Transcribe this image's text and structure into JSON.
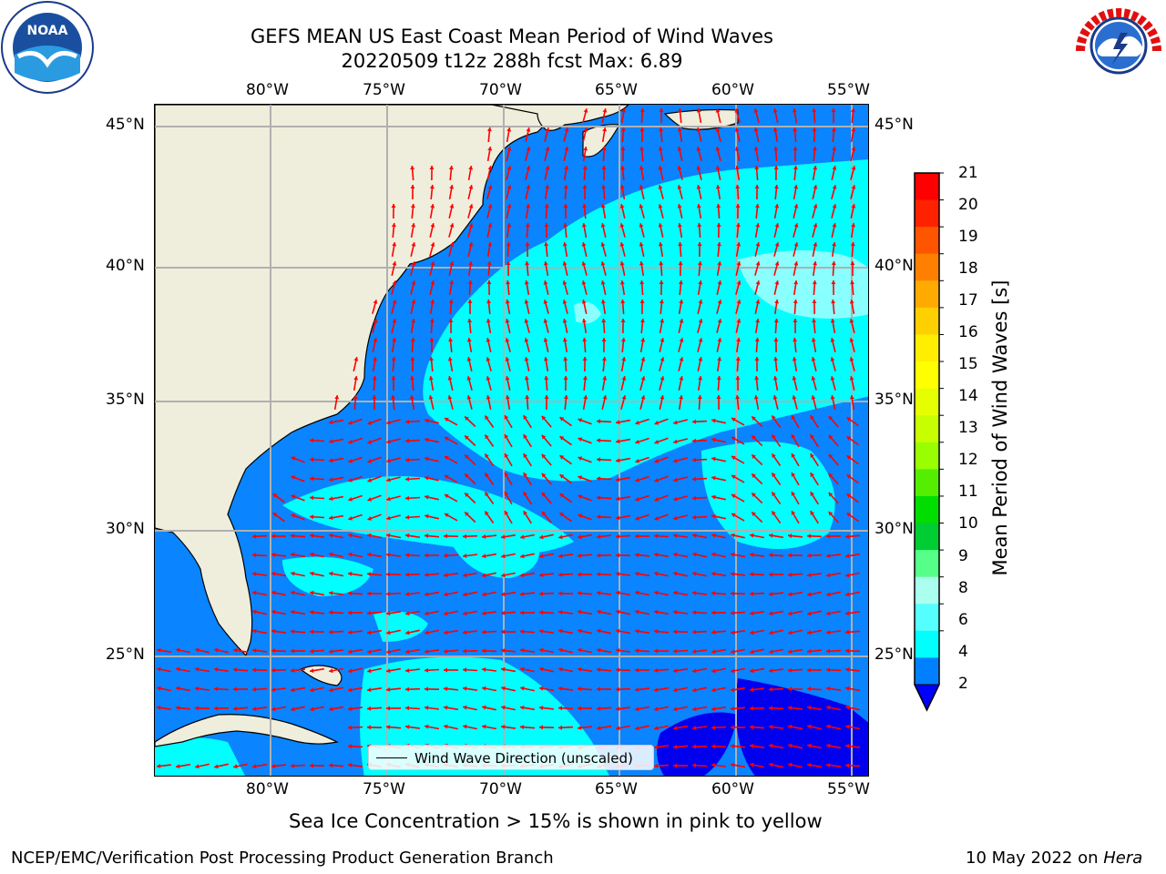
{
  "header": {
    "title_line1": "GEFS MEAN US East Coast Mean Period of Wind Waves",
    "title_line2": "20220509 t12z 288h fcst   Max: 6.89",
    "logo_left": "NOAA",
    "logo_left_ring_text": "NATIONAL OCEANIC AND ATMOSPHERIC ADMINISTRATION · U.S. DEPARTMENT OF COMMERCE",
    "logo_right_ring_text": "NATIONAL WEATHER SERVICE"
  },
  "map": {
    "lon_ticks": [
      "80°W",
      "75°W",
      "70°W",
      "65°W",
      "60°W",
      "55°W"
    ],
    "lat_ticks": [
      "45°N",
      "40°N",
      "35°N",
      "30°N",
      "25°N"
    ],
    "legend_label": "Wind Wave Direction (unscaled)"
  },
  "colorbar": {
    "label": "Mean Period of Wind Waves [s]",
    "ticks": [
      "21",
      "20",
      "19",
      "18",
      "17",
      "16",
      "15",
      "14",
      "13",
      "12",
      "11",
      "10",
      "9",
      "8",
      "6",
      "4",
      "2"
    ],
    "colors": [
      "#ff0000",
      "#ff2200",
      "#ff5500",
      "#ff8000",
      "#ffaa00",
      "#ffd000",
      "#ffee00",
      "#ffff00",
      "#e6ff00",
      "#c8ff00",
      "#99ff00",
      "#55ee00",
      "#00dd00",
      "#00cc33",
      "#55ff88",
      "#aaffee",
      "#55ffff",
      "#00ffff",
      "#0080ff"
    ],
    "extend_color": "#0000ff"
  },
  "footer": {
    "note": "Sea Ice Concentration > 15% is shown in pink to yellow",
    "left": "NCEP/EMC/Verification Post Processing Product Generation Branch",
    "right_prefix": "10 May 2022 on ",
    "right_italic": "Hera"
  },
  "palette": {
    "land": "#efeedc",
    "ocean_deep": "#0a84ff",
    "ocean_mid": "#00ffff",
    "ocean_light": "#8affff",
    "ocean_low": "#0000ee",
    "arrow": "#ff0000",
    "grid": "#b0b0b0"
  }
}
